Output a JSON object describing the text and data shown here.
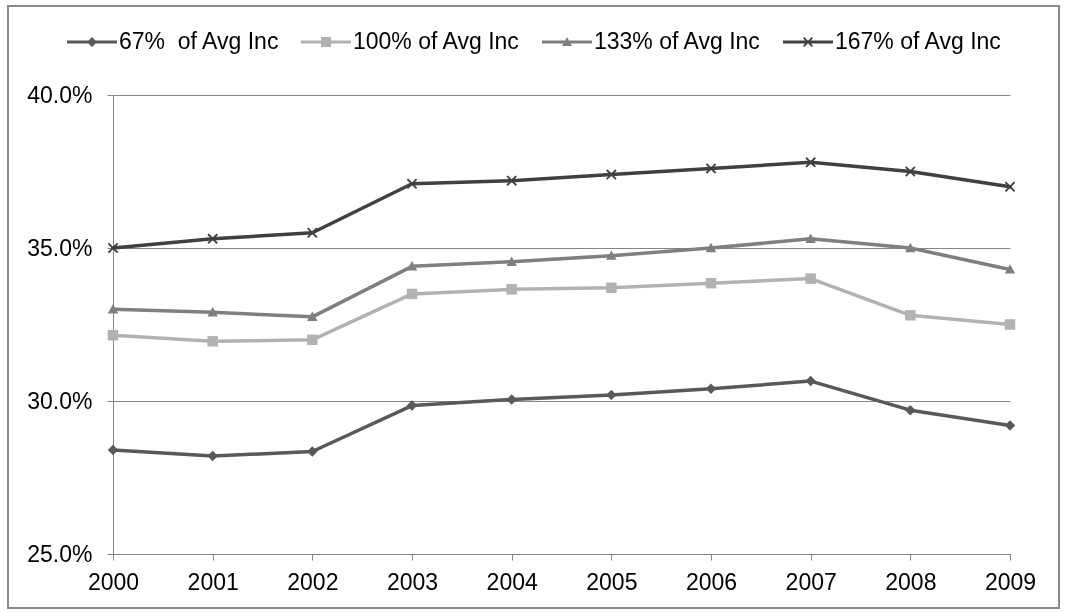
{
  "chart_data": {
    "type": "line",
    "categories": [
      "2000",
      "2001",
      "2002",
      "2003",
      "2004",
      "2005",
      "2006",
      "2007",
      "2008",
      "2009"
    ],
    "series": [
      {
        "name": "67%  of Avg Inc",
        "color": "#595959",
        "marker": "diamond",
        "values": [
          28.4,
          28.2,
          28.35,
          29.85,
          30.05,
          30.2,
          30.4,
          30.65,
          29.7,
          29.2
        ]
      },
      {
        "name": "100% of Avg Inc",
        "color": "#b2b2b2",
        "marker": "square",
        "values": [
          32.15,
          31.95,
          32.0,
          33.5,
          33.65,
          33.7,
          33.85,
          34.0,
          32.8,
          32.5
        ]
      },
      {
        "name": "133% of Avg Inc",
        "color": "#7f7f7f",
        "marker": "triangle",
        "values": [
          33.0,
          32.9,
          32.75,
          34.4,
          34.55,
          34.75,
          35.0,
          35.3,
          35.0,
          34.3
        ]
      },
      {
        "name": "167% of Avg Inc",
        "color": "#404040",
        "marker": "cross",
        "values": [
          35.0,
          35.3,
          35.5,
          37.1,
          37.2,
          37.4,
          37.6,
          37.8,
          37.5,
          37.0
        ]
      }
    ],
    "ylim": [
      25,
      40
    ],
    "yticks": [
      {
        "value": 25,
        "label": "25.0%"
      },
      {
        "value": 30,
        "label": "30.0%"
      },
      {
        "value": 35,
        "label": "35.0%"
      },
      {
        "value": 40,
        "label": "40.0%"
      }
    ],
    "grid": "y",
    "legend": "top",
    "line_style": "solid"
  }
}
